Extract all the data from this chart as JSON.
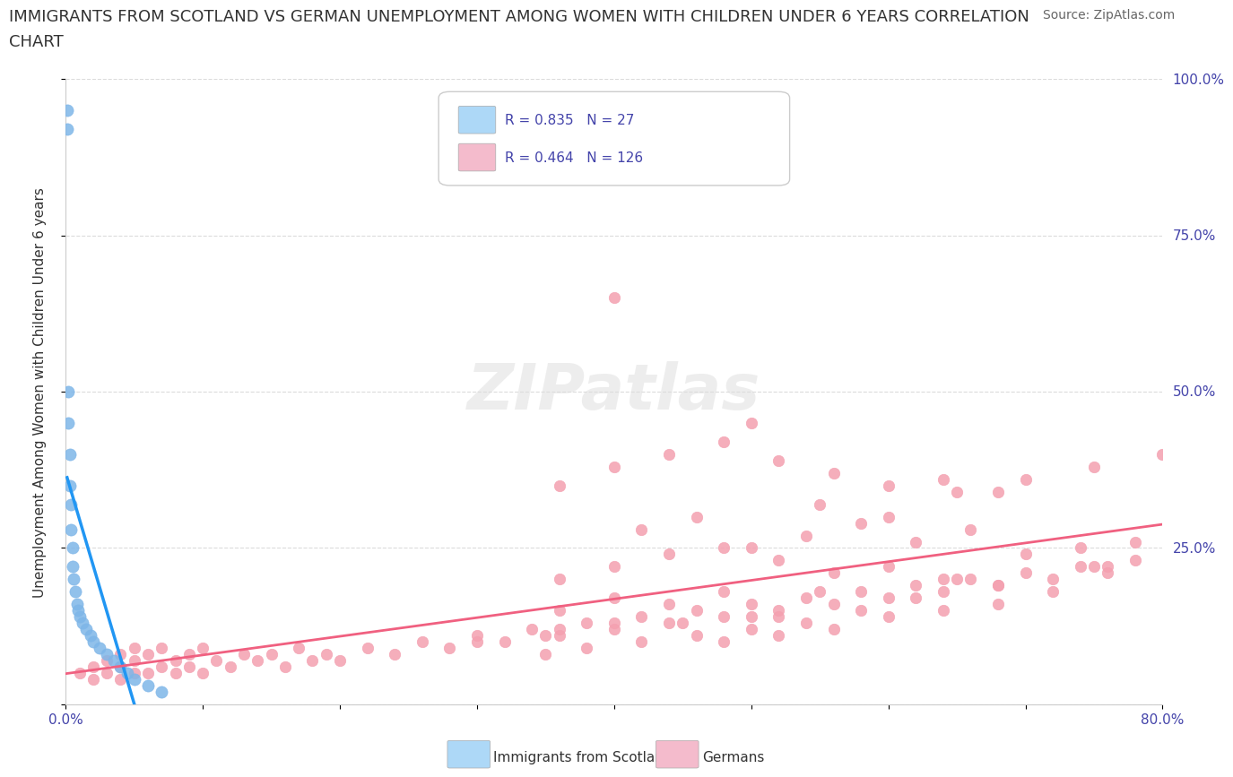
{
  "title_line1": "IMMIGRANTS FROM SCOTLAND VS GERMAN UNEMPLOYMENT AMONG WOMEN WITH CHILDREN UNDER 6 YEARS CORRELATION",
  "title_line2": "CHART",
  "source": "Source: ZipAtlas.com",
  "xlabel_bottom": "",
  "ylabel": "Unemployment Among Women with Children Under 6 years",
  "xlim": [
    0.0,
    0.8
  ],
  "ylim": [
    0.0,
    1.0
  ],
  "xticks": [
    0.0,
    0.1,
    0.2,
    0.3,
    0.4,
    0.5,
    0.6,
    0.7,
    0.8
  ],
  "xticklabels": [
    "0.0%",
    "",
    "",
    "",
    "",
    "",
    "",
    "",
    "80.0%"
  ],
  "yticks": [
    0.0,
    0.25,
    0.5,
    0.75,
    1.0
  ],
  "yticklabels": [
    "",
    "25.0%",
    "50.0%",
    "75.0%",
    "100.0%"
  ],
  "scotland_R": 0.835,
  "scotland_N": 27,
  "german_R": 0.464,
  "german_N": 126,
  "scotland_color": "#7EB6E8",
  "german_color": "#F4A0B0",
  "scotland_line_color": "#2196F3",
  "german_line_color": "#F06080",
  "scotland_x": [
    0.001,
    0.001,
    0.002,
    0.002,
    0.003,
    0.003,
    0.004,
    0.004,
    0.005,
    0.005,
    0.006,
    0.007,
    0.008,
    0.009,
    0.01,
    0.012,
    0.015,
    0.018,
    0.02,
    0.025,
    0.03,
    0.035,
    0.04,
    0.045,
    0.05,
    0.06,
    0.07
  ],
  "scotland_y": [
    0.95,
    0.92,
    0.5,
    0.45,
    0.4,
    0.35,
    0.32,
    0.28,
    0.25,
    0.22,
    0.2,
    0.18,
    0.16,
    0.15,
    0.14,
    0.13,
    0.12,
    0.11,
    0.1,
    0.09,
    0.08,
    0.07,
    0.06,
    0.05,
    0.04,
    0.03,
    0.02
  ],
  "german_x": [
    0.01,
    0.02,
    0.02,
    0.03,
    0.03,
    0.04,
    0.04,
    0.04,
    0.05,
    0.05,
    0.05,
    0.06,
    0.06,
    0.07,
    0.07,
    0.08,
    0.08,
    0.09,
    0.09,
    0.1,
    0.1,
    0.11,
    0.12,
    0.13,
    0.14,
    0.15,
    0.16,
    0.17,
    0.18,
    0.19,
    0.2,
    0.22,
    0.24,
    0.26,
    0.28,
    0.3,
    0.32,
    0.34,
    0.36,
    0.38,
    0.4,
    0.42,
    0.44,
    0.46,
    0.48,
    0.5,
    0.52,
    0.54,
    0.56,
    0.58,
    0.6,
    0.62,
    0.64,
    0.66,
    0.68,
    0.7,
    0.72,
    0.74,
    0.76,
    0.78,
    0.36,
    0.4,
    0.44,
    0.48,
    0.52,
    0.56,
    0.6,
    0.64,
    0.68,
    0.36,
    0.4,
    0.44,
    0.48,
    0.52,
    0.56,
    0.6,
    0.64,
    0.68,
    0.36,
    0.4,
    0.44,
    0.48,
    0.52,
    0.42,
    0.46,
    0.5,
    0.54,
    0.58,
    0.62,
    0.66,
    0.7,
    0.74,
    0.78,
    0.36,
    0.4,
    0.55,
    0.65,
    0.75,
    0.3,
    0.35,
    0.45,
    0.5,
    0.4,
    0.5,
    0.6,
    0.55,
    0.65,
    0.7,
    0.75,
    0.8,
    0.48,
    0.52,
    0.56,
    0.6,
    0.64,
    0.68,
    0.72,
    0.76,
    0.35,
    0.38,
    0.42,
    0.46,
    0.5,
    0.54,
    0.58,
    0.62
  ],
  "german_y": [
    0.05,
    0.04,
    0.06,
    0.05,
    0.07,
    0.04,
    0.06,
    0.08,
    0.05,
    0.07,
    0.09,
    0.05,
    0.08,
    0.06,
    0.09,
    0.05,
    0.07,
    0.06,
    0.08,
    0.05,
    0.09,
    0.07,
    0.06,
    0.08,
    0.07,
    0.08,
    0.06,
    0.09,
    0.07,
    0.08,
    0.07,
    0.09,
    0.08,
    0.1,
    0.09,
    0.11,
    0.1,
    0.12,
    0.11,
    0.13,
    0.12,
    0.14,
    0.13,
    0.15,
    0.14,
    0.16,
    0.15,
    0.17,
    0.16,
    0.18,
    0.17,
    0.19,
    0.18,
    0.2,
    0.19,
    0.21,
    0.2,
    0.22,
    0.21,
    0.23,
    0.35,
    0.38,
    0.4,
    0.42,
    0.39,
    0.37,
    0.35,
    0.36,
    0.34,
    0.2,
    0.22,
    0.24,
    0.25,
    0.23,
    0.21,
    0.22,
    0.2,
    0.19,
    0.15,
    0.17,
    0.16,
    0.18,
    0.14,
    0.28,
    0.3,
    0.25,
    0.27,
    0.29,
    0.26,
    0.28,
    0.24,
    0.25,
    0.26,
    0.12,
    0.13,
    0.18,
    0.2,
    0.22,
    0.1,
    0.11,
    0.13,
    0.14,
    0.65,
    0.45,
    0.3,
    0.32,
    0.34,
    0.36,
    0.38,
    0.4,
    0.1,
    0.11,
    0.12,
    0.14,
    0.15,
    0.16,
    0.18,
    0.22,
    0.08,
    0.09,
    0.1,
    0.11,
    0.12,
    0.13,
    0.15,
    0.17
  ],
  "background_color": "#FFFFFF",
  "grid_color": "#CCCCCC",
  "watermark_text": "ZIPatlas",
  "legend_box_color_scotland": "#ADD8F7",
  "legend_box_color_german": "#F4BBCC"
}
